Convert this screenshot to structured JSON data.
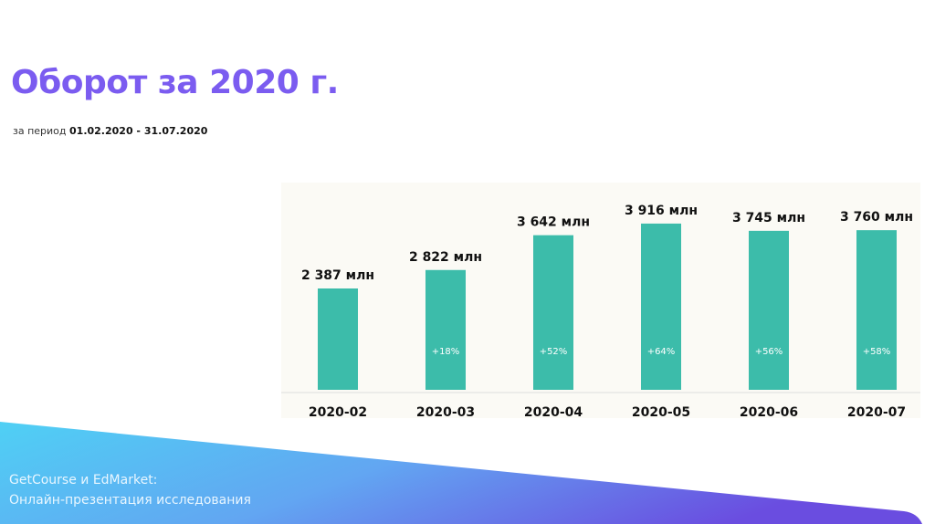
{
  "title": "Оборот за 2020 г.",
  "period_label": "за период",
  "period_value": "01.02.2020 - 31.07.2020",
  "footer": {
    "line1": "GetCourse и EdMarket:",
    "line2": "Онлайн-презентация исследования"
  },
  "colors": {
    "bar": "#3cbcaa",
    "title": "#7b5cf0"
  },
  "chart_data": {
    "type": "bar",
    "categories": [
      "2020-02",
      "2020-03",
      "2020-04",
      "2020-05",
      "2020-06",
      "2020-07"
    ],
    "values": [
      2387,
      2822,
      3642,
      3916,
      3745,
      3760
    ],
    "value_labels": [
      "2 387 млн",
      "2 822 млн",
      "3 642 млн",
      "3 916 млн",
      "3 745 млн",
      "3 760 млн"
    ],
    "growth_labels": [
      "",
      "+18%",
      "+52%",
      "+64%",
      "+56%",
      "+58%"
    ],
    "unit": "млн",
    "title": "Оборот за 2020 г.",
    "xlabel": "",
    "ylabel": "",
    "ylim": [
      0,
      4000
    ],
    "grid": false
  }
}
